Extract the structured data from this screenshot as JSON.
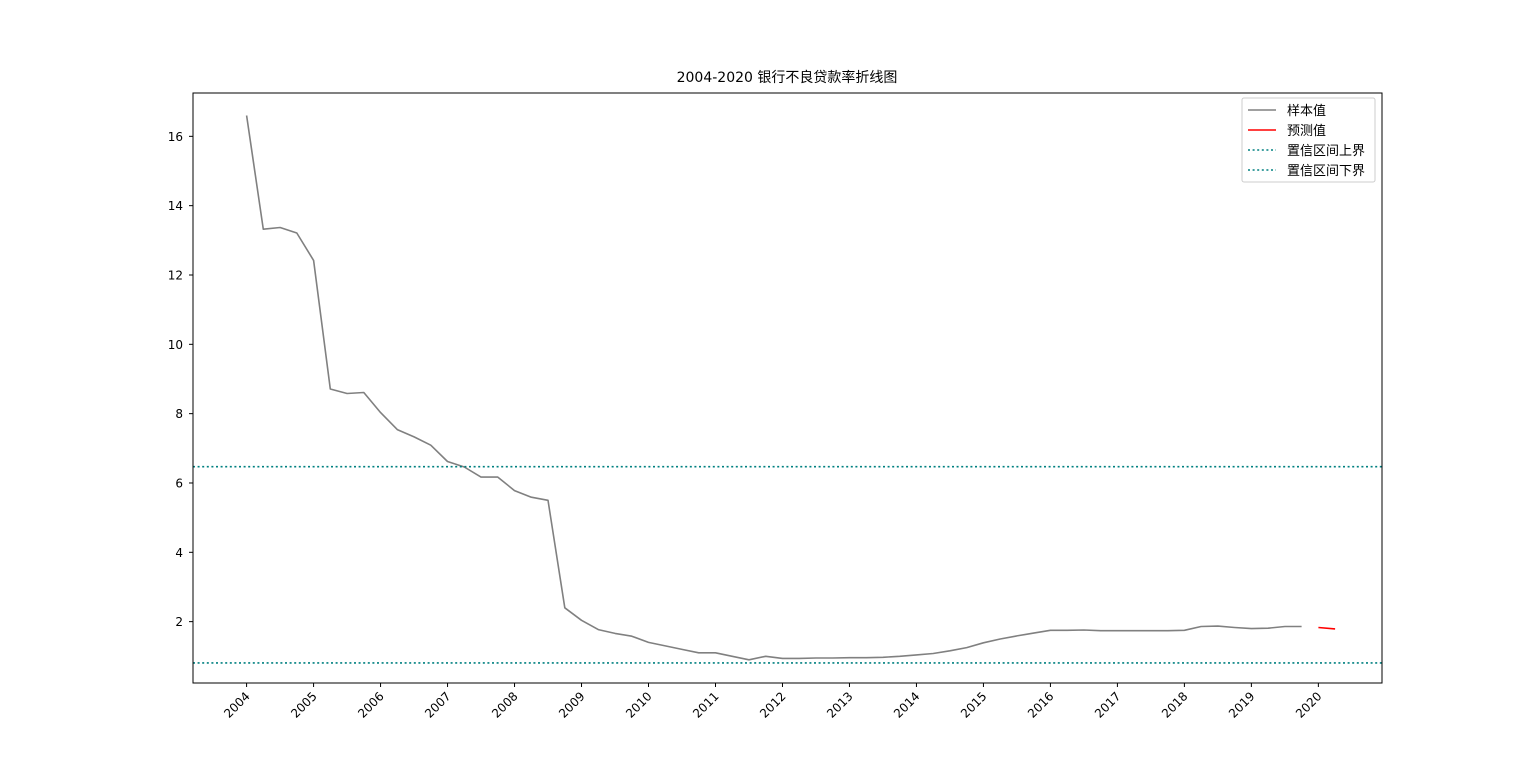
{
  "chart_data": {
    "type": "line",
    "title": "2004-2020 银行不良贷款率折线图",
    "xlabel": "",
    "ylabel": "",
    "x_axis": "year",
    "xlim": [
      2003.2,
      2020.95
    ],
    "ylim": [
      0.23,
      17.25
    ],
    "xticks": [
      "2004",
      "2005",
      "2006",
      "2007",
      "2008",
      "2009",
      "2010",
      "2011",
      "2012",
      "2013",
      "2014",
      "2015",
      "2016",
      "2017",
      "2018",
      "2019",
      "2020"
    ],
    "yticks": [
      "2",
      "4",
      "6",
      "8",
      "10",
      "12",
      "14",
      "16"
    ],
    "grid": false,
    "legend_position": "top-right",
    "series": [
      {
        "name": "样本值",
        "color": "#808080",
        "style": "solid",
        "x": [
          2004.0,
          2004.25,
          2004.5,
          2004.75,
          2005.0,
          2005.25,
          2005.5,
          2005.75,
          2006.0,
          2006.25,
          2006.5,
          2006.75,
          2007.0,
          2007.25,
          2007.5,
          2007.75,
          2008.0,
          2008.25,
          2008.5,
          2008.75,
          2009.0,
          2009.25,
          2009.5,
          2009.75,
          2010.0,
          2010.25,
          2010.5,
          2010.75,
          2011.0,
          2011.25,
          2011.5,
          2011.75,
          2012.0,
          2012.25,
          2012.5,
          2012.75,
          2013.0,
          2013.25,
          2013.5,
          2013.75,
          2014.0,
          2014.25,
          2014.5,
          2014.75,
          2015.0,
          2015.25,
          2015.5,
          2015.75,
          2016.0,
          2016.25,
          2016.5,
          2016.75,
          2017.0,
          2017.25,
          2017.5,
          2017.75,
          2018.0,
          2018.25,
          2018.5,
          2018.75,
          2019.0,
          2019.25,
          2019.5,
          2019.75
        ],
        "y": [
          16.6,
          13.32,
          13.37,
          13.21,
          12.42,
          8.71,
          8.58,
          8.61,
          8.03,
          7.54,
          7.33,
          7.09,
          6.62,
          6.46,
          6.17,
          6.17,
          5.78,
          5.59,
          5.5,
          2.4,
          2.04,
          1.77,
          1.66,
          1.58,
          1.4,
          1.3,
          1.2,
          1.1,
          1.1,
          1.0,
          0.9,
          1.0,
          0.94,
          0.94,
          0.95,
          0.95,
          0.96,
          0.96,
          0.97,
          1.0,
          1.04,
          1.08,
          1.16,
          1.25,
          1.39,
          1.5,
          1.59,
          1.67,
          1.75,
          1.75,
          1.76,
          1.74,
          1.74,
          1.74,
          1.74,
          1.74,
          1.75,
          1.86,
          1.87,
          1.83,
          1.8,
          1.81,
          1.86,
          1.86
        ]
      },
      {
        "name": "预测值",
        "color": "#ff0000",
        "style": "solid",
        "x": [
          2020.0,
          2020.25
        ],
        "y": [
          1.83,
          1.79
        ]
      },
      {
        "name": "置信区间上界",
        "color": "#008080",
        "style": "dotted",
        "hline": 6.47
      },
      {
        "name": "置信区间下界",
        "color": "#008080",
        "style": "dotted",
        "hline": 0.81
      }
    ]
  }
}
